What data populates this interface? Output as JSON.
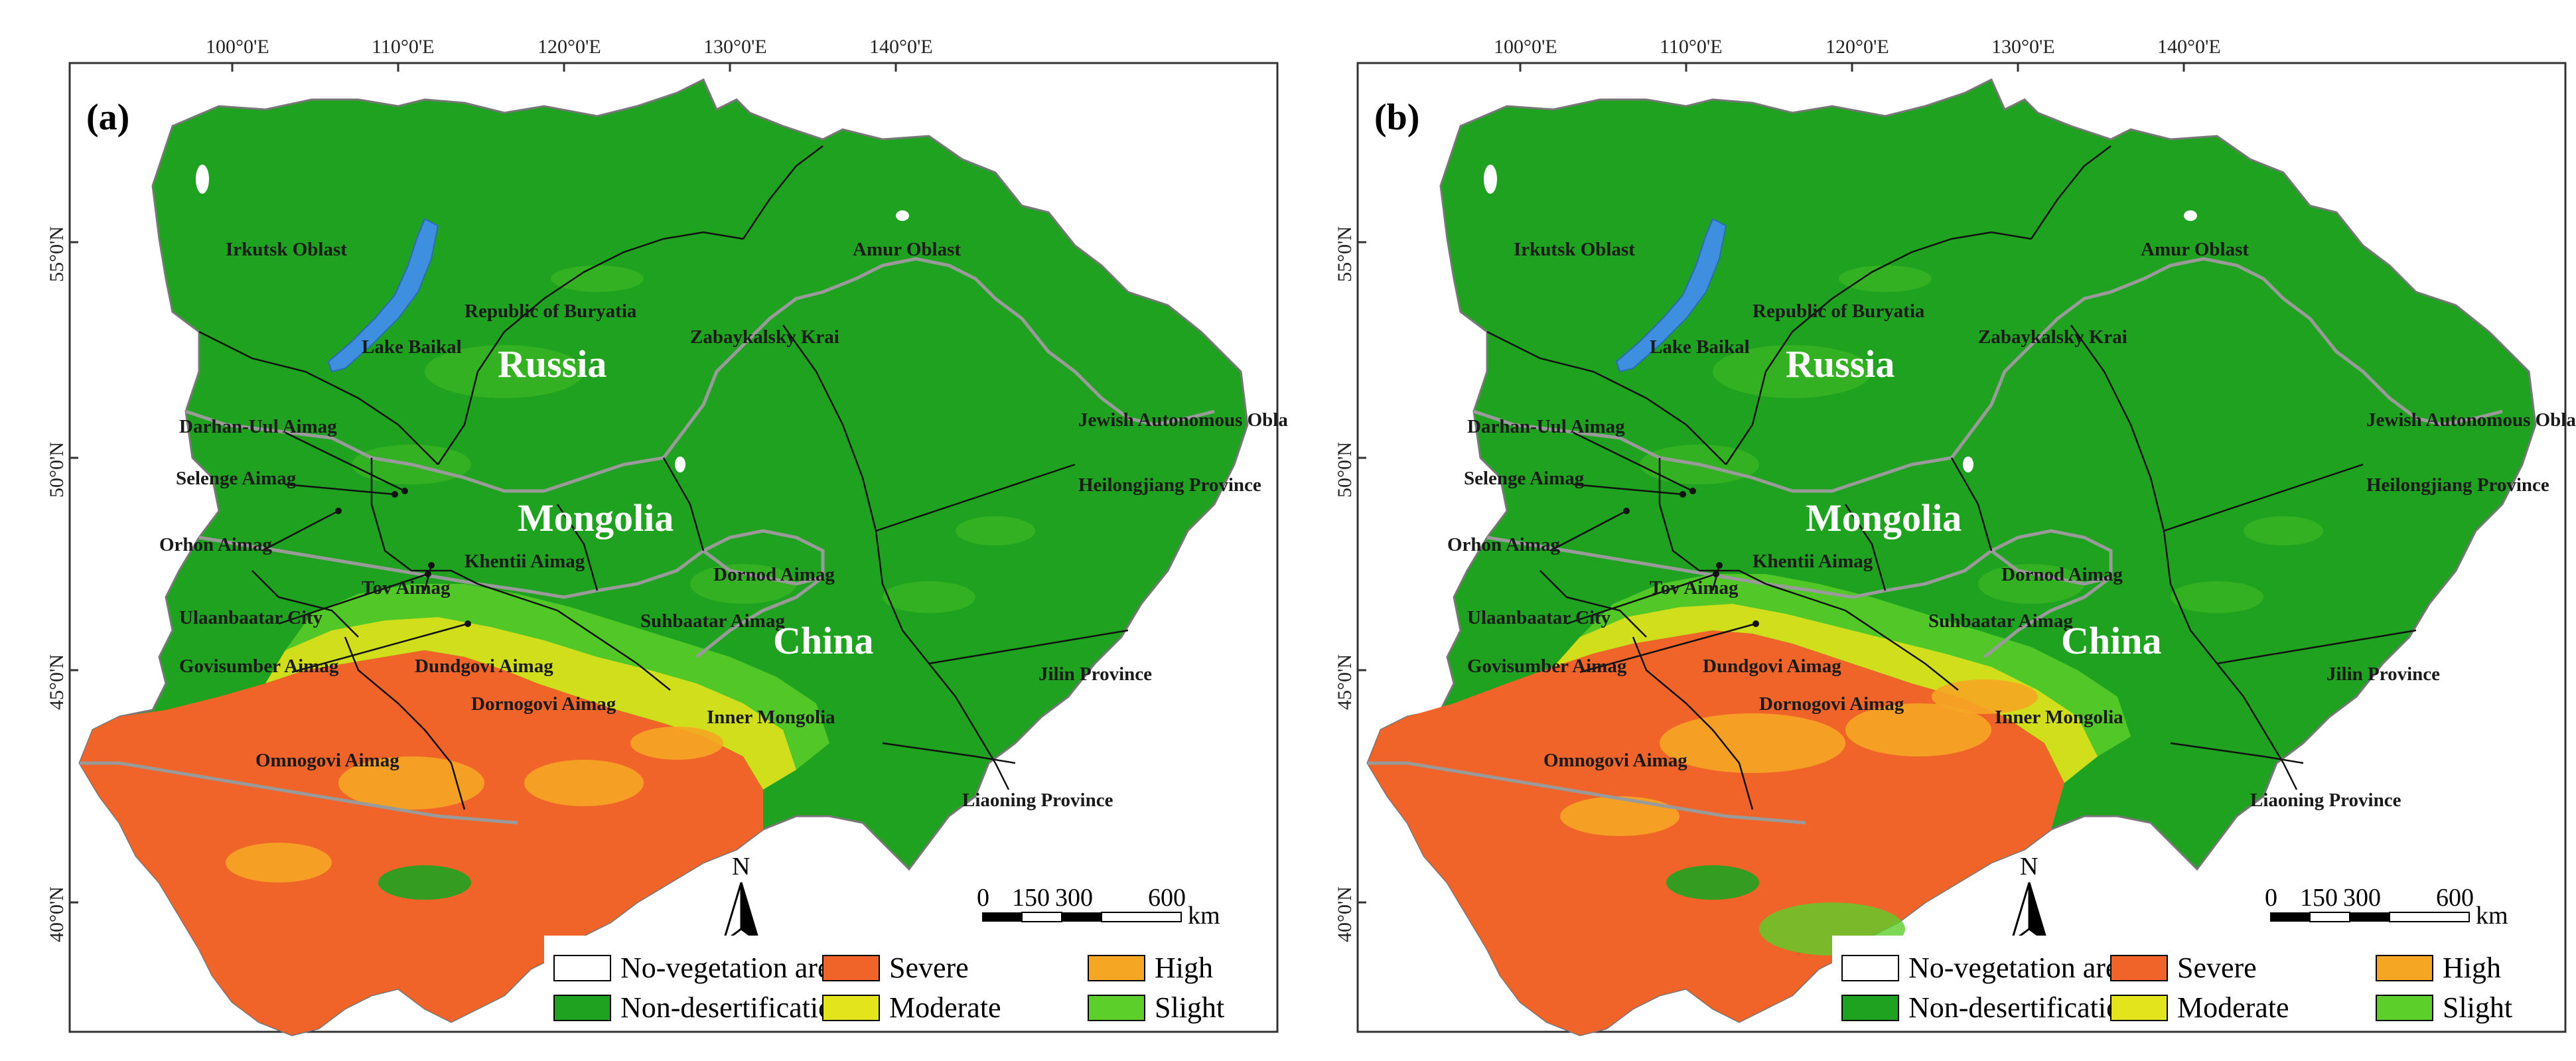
{
  "longitude_ticks": [
    "100°0'E",
    "110°0'E",
    "120°0'E",
    "130°0'E",
    "140°0'E"
  ],
  "latitude_ticks": [
    "55°0'N",
    "50°0'N",
    "45°0'N",
    "40°0'N"
  ],
  "panels": [
    {
      "label": "(a)"
    },
    {
      "label": "(b)"
    }
  ],
  "places": {
    "irkutsk": "Irkutsk Oblast",
    "amur": "Amur Oblast",
    "buryatia": "Republic of Buryatia",
    "baikal": "Lake Baikal",
    "zabaykalsky": "Zabaykalsky Krai",
    "russia": "Russia",
    "jewish": "Jewish Autonomous Oblast",
    "darhan": "Darhan-Uul Aimag",
    "heilongjiang": "Heilongjiang Province",
    "selenge": "Selenge Aimag",
    "mongolia": "Mongolia",
    "orhon": "Orhon Aimag",
    "khentii": "Khentii Aimag",
    "dornod": "Dornod Aimag",
    "tov": "Tov Aimag",
    "ulaanbaatar": "Ulaanbaatar City",
    "suhbaatar": "Suhbaatar Aimag",
    "china": "China",
    "govisumber": "Govisumber Aimag",
    "dundgovi": "Dundgovi Aimag",
    "jilin": "Jilin Province",
    "dornogovi": "Dornogovi Aimag",
    "inner_mongolia": "Inner Mongolia",
    "omnogovi": "Omnogovi Aimag",
    "liaoning": "Liaoning Province"
  },
  "north_arrow": "N",
  "scalebar": {
    "ticks": [
      "0",
      "150",
      "300",
      "600"
    ],
    "unit": "km"
  },
  "legend": [
    {
      "label": "No-vegetation area",
      "color": "#ffffff"
    },
    {
      "label": "Severe",
      "color": "#f0642a"
    },
    {
      "label": "High",
      "color": "#f5a623"
    },
    {
      "label": "Non-desertification",
      "color": "#1fa21f"
    },
    {
      "label": "Moderate",
      "color": "#e4e41c"
    },
    {
      "label": "Slight",
      "color": "#5ccf2a"
    }
  ]
}
